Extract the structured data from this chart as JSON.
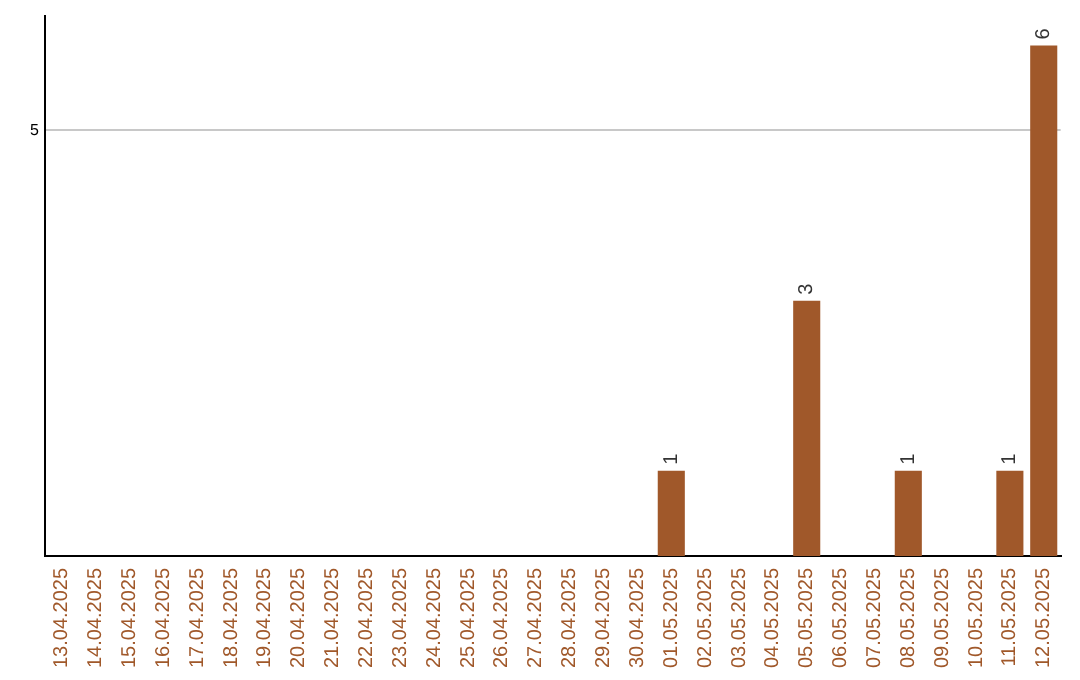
{
  "chart_data": {
    "type": "bar",
    "categories": [
      "13.04.2025",
      "14.04.2025",
      "15.04.2025",
      "16.04.2025",
      "17.04.2025",
      "18.04.2025",
      "19.04.2025",
      "20.04.2025",
      "21.04.2025",
      "22.04.2025",
      "23.04.2025",
      "24.04.2025",
      "25.04.2025",
      "26.04.2025",
      "27.04.2025",
      "28.04.2025",
      "29.04.2025",
      "30.04.2025",
      "01.05.2025",
      "02.05.2025",
      "03.05.2025",
      "04.05.2025",
      "05.05.2025",
      "06.05.2025",
      "07.05.2025",
      "08.05.2025",
      "09.05.2025",
      "10.05.2025",
      "11.05.2025",
      "12.05.2025"
    ],
    "values": [
      null,
      null,
      null,
      null,
      null,
      null,
      null,
      null,
      null,
      null,
      null,
      null,
      null,
      null,
      null,
      null,
      null,
      null,
      1,
      null,
      null,
      null,
      3,
      null,
      null,
      1,
      null,
      null,
      1,
      6
    ],
    "data_labels": true,
    "color": "#a0582a",
    "ylim": [
      0,
      6.35
    ],
    "yticks": [
      5
    ],
    "grid": "y",
    "legend": false
  }
}
